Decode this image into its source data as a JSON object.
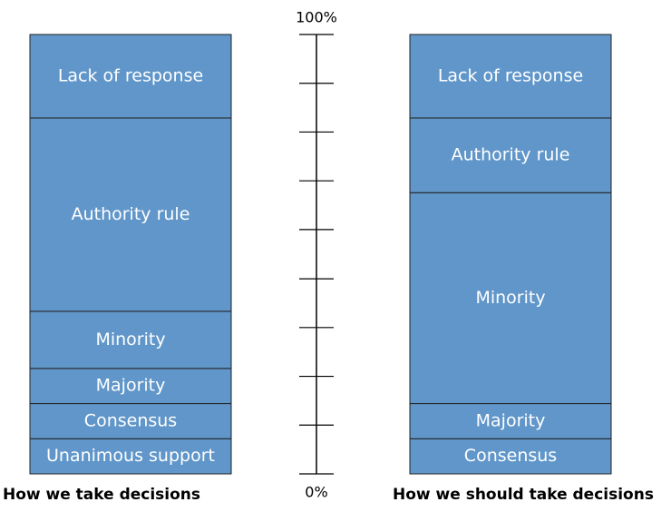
{
  "chart_data": {
    "type": "stacked_bar",
    "color": "#6096c9",
    "ylim": [
      0,
      100
    ],
    "yticks": [
      {
        "value": 0,
        "label": "0%"
      },
      {
        "value": 100,
        "label": "100%"
      }
    ],
    "minor_ticks": [
      11.1,
      22.2,
      33.3,
      44.4,
      55.6,
      66.7,
      77.8,
      88.9
    ],
    "bars": [
      {
        "label": "How we take decisions",
        "segments": [
          {
            "name": "Unanimous support",
            "value": 8
          },
          {
            "name": "Consensus",
            "value": 8
          },
          {
            "name": "Majority",
            "value": 8
          },
          {
            "name": "Minority",
            "value": 13
          },
          {
            "name": "Authority rule",
            "value": 44
          },
          {
            "name": "Lack of response",
            "value": 19
          }
        ]
      },
      {
        "label": "How we should take decisions",
        "segments": [
          {
            "name": "Consensus",
            "value": 8
          },
          {
            "name": "Majority",
            "value": 8
          },
          {
            "name": "Minority",
            "value": 48
          },
          {
            "name": "Authority rule",
            "value": 17
          },
          {
            "name": "Lack of response",
            "value": 19
          }
        ]
      }
    ]
  }
}
